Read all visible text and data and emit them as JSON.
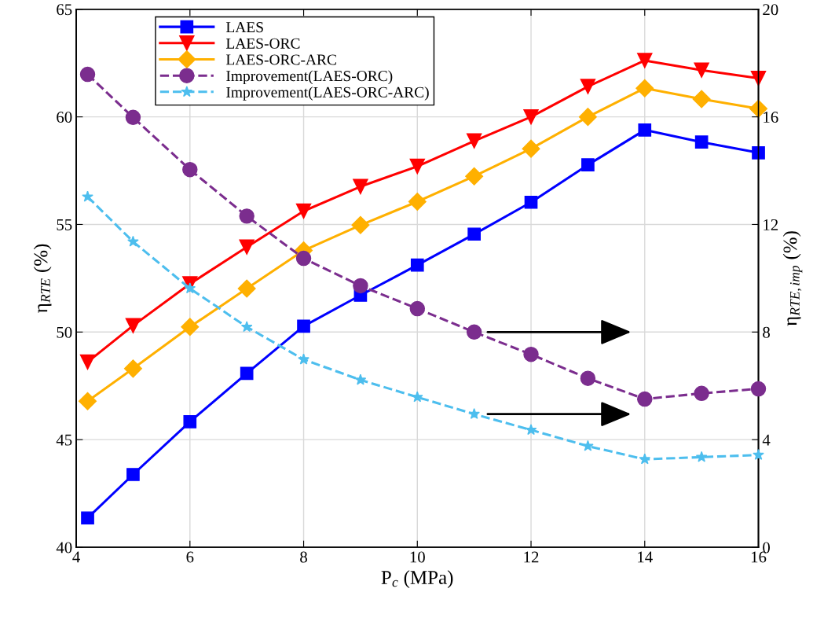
{
  "chart_data": {
    "type": "line",
    "xlabel": "P$_{c}$ (MPa)",
    "ylabel": "η$_{RTE}$ (%)",
    "y2label": "η$_{RTE,imp}$ (%)",
    "x": [
      4.2,
      5,
      6,
      7,
      8,
      9,
      10,
      11,
      12,
      13,
      14,
      15,
      16
    ],
    "xlim": [
      4,
      16
    ],
    "xticks": [
      4,
      6,
      8,
      10,
      12,
      14,
      16
    ],
    "ylim": [
      40,
      65
    ],
    "yticks": [
      40,
      45,
      50,
      55,
      60,
      65
    ],
    "y2lim": [
      0,
      20
    ],
    "y2ticks": [
      0,
      4,
      8,
      12,
      16,
      20
    ],
    "grid": true,
    "legend": "top left",
    "series": [
      {
        "name": "LAES",
        "color": "#0000ff",
        "marker": "square",
        "line_style": "solid",
        "values": [
          41.36,
          43.38,
          45.83,
          48.08,
          50.27,
          51.71,
          53.11,
          54.55,
          56.03,
          57.77,
          59.39,
          58.83,
          58.33
        ]
      },
      {
        "name": "LAES-ORC",
        "color": "#ff0000",
        "marker": "triangle",
        "line_style": "solid",
        "values": [
          48.61,
          50.3,
          52.24,
          53.95,
          55.62,
          56.76,
          57.7,
          58.88,
          60.0,
          61.41,
          62.62,
          62.17,
          61.79
        ]
      },
      {
        "name": "LAES-ORC-ARC",
        "color": "#ffb000",
        "marker": "diamond",
        "line_style": "solid",
        "values": [
          46.79,
          48.3,
          50.24,
          52.02,
          53.79,
          54.97,
          56.06,
          57.24,
          58.52,
          60.0,
          61.33,
          60.83,
          60.38
        ]
      },
      {
        "name": "Improvement(LAES-ORC)",
        "color": "#7b2d8e",
        "marker": "circle",
        "line_style": "dashed",
        "axis": "y2",
        "values": [
          17.58,
          15.98,
          14.04,
          12.31,
          10.74,
          9.72,
          8.87,
          8.0,
          7.17,
          6.28,
          5.51,
          5.72,
          5.89
        ]
      },
      {
        "name": "Improvement(LAES-ORC-ARC)",
        "color": "#4dbeee",
        "marker": "star",
        "line_style": "dashed",
        "axis": "y2",
        "values": [
          13.03,
          11.36,
          9.62,
          8.19,
          6.98,
          6.22,
          5.58,
          4.95,
          4.36,
          3.76,
          3.27,
          3.35,
          3.43
        ]
      }
    ]
  }
}
